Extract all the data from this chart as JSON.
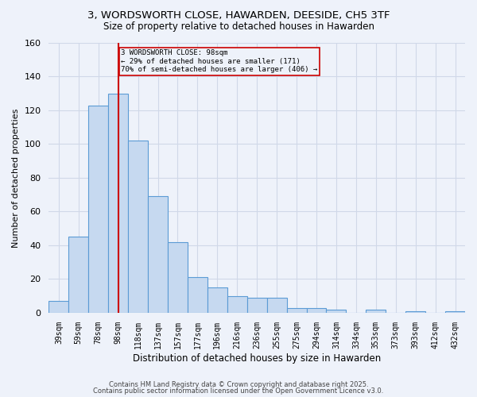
{
  "title": "3, WORDSWORTH CLOSE, HAWARDEN, DEESIDE, CH5 3TF",
  "subtitle": "Size of property relative to detached houses in Hawarden",
  "xlabel": "Distribution of detached houses by size in Hawarden",
  "ylabel": "Number of detached properties",
  "categories": [
    "39sqm",
    "59sqm",
    "78sqm",
    "98sqm",
    "118sqm",
    "137sqm",
    "157sqm",
    "177sqm",
    "196sqm",
    "216sqm",
    "236sqm",
    "255sqm",
    "275sqm",
    "294sqm",
    "314sqm",
    "334sqm",
    "353sqm",
    "373sqm",
    "393sqm",
    "412sqm",
    "432sqm"
  ],
  "values": [
    7,
    45,
    123,
    130,
    102,
    69,
    42,
    21,
    15,
    10,
    9,
    9,
    3,
    3,
    2,
    0,
    2,
    0,
    1,
    0,
    1
  ],
  "bar_color": "#c6d9f0",
  "bar_edge_color": "#5b9bd5",
  "grid_color": "#d0d8e8",
  "background_color": "#eef2fa",
  "property_label": "3 WORDSWORTH CLOSE: 98sqm",
  "annotation_line1": "← 29% of detached houses are smaller (171)",
  "annotation_line2": "70% of semi-detached houses are larger (406) →",
  "red_line_color": "#cc0000",
  "footer_line1": "Contains HM Land Registry data © Crown copyright and database right 2025.",
  "footer_line2": "Contains public sector information licensed under the Open Government Licence v3.0.",
  "ylim": [
    0,
    160
  ],
  "yticks": [
    0,
    20,
    40,
    60,
    80,
    100,
    120,
    140,
    160
  ],
  "red_line_index": 3
}
